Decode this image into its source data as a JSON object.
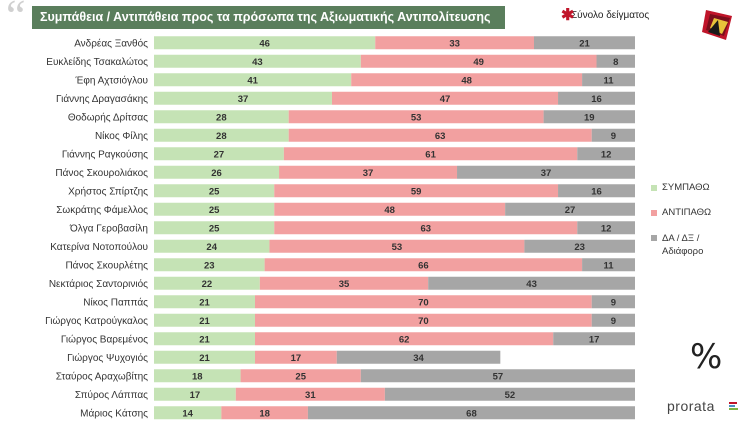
{
  "title": "Συμπάθεια / Αντιπάθεια προς τα πρόσωπα της Αξιωματικής Αντιπολίτευσης",
  "sample_note": "Σύνολο δείγματος",
  "percent_symbol": "%",
  "brand": "prorata",
  "colors": {
    "sympatho": "#c5e3b5",
    "antipatho": "#f2a0a0",
    "other": "#a6a6a6",
    "title_bg": "#5a7e5c",
    "accent": "#c0152a"
  },
  "chart_data": {
    "type": "bar",
    "stacked": true,
    "orientation": "horizontal",
    "categories": [
      "Ανδρέας Ξανθός",
      "Ευκλείδης Τσακαλώτος",
      "Έφη Αχτσιόγλου",
      "Γιάννης Δραγασάκης",
      "Θοδωρής Δρίτσας",
      "Νίκος Φίλης",
      "Γιάννης Ραγκούσης",
      "Πάνος Σκουρολιάκος",
      "Χρήστος Σπίρτζης",
      "Σωκράτης Φάμελλος",
      "Όλγα Γεροβασίλη",
      "Κατερίνα Νοτοπούλου",
      "Πάνος Σκουρλέτης",
      "Νεκτάριος Σαντορινιός",
      "Νίκος Παππάς",
      "Γιώργος Κατρούγκαλος",
      "Γιώργος Βαρεμένος",
      "Γιώργος Ψυχογιός",
      "Σταύρος Αραχωβίτης",
      "Σπύρος Λάππας",
      "Μάριος Κάτσης"
    ],
    "series": [
      {
        "name": "ΣΥΜΠΑΘΩ",
        "color": "#c5e3b5",
        "values": [
          46,
          43,
          41,
          37,
          28,
          28,
          27,
          26,
          25,
          25,
          25,
          24,
          23,
          22,
          21,
          21,
          21,
          21,
          18,
          17,
          14
        ]
      },
      {
        "name": "ΑΝΤΙΠΑΘΩ",
        "color": "#f2a0a0",
        "values": [
          33,
          49,
          48,
          47,
          53,
          63,
          61,
          37,
          59,
          48,
          63,
          53,
          66,
          35,
          70,
          70,
          62,
          17,
          25,
          31,
          18
        ]
      },
      {
        "name": "ΔΑ / ΔΞ / Αδιάφορο",
        "color": "#a6a6a6",
        "values": [
          21,
          8,
          11,
          16,
          19,
          9,
          12,
          37,
          16,
          27,
          12,
          23,
          11,
          43,
          9,
          9,
          17,
          34,
          57,
          52,
          68
        ]
      }
    ],
    "xlim": [
      0,
      100
    ]
  }
}
